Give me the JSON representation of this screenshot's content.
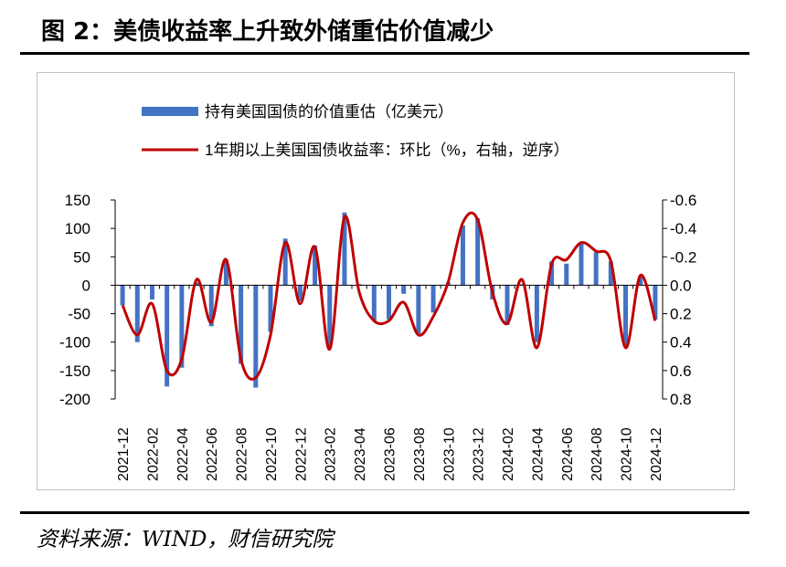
{
  "figure": {
    "title": "图 2：美债收益率上升致外储重估价值减少",
    "source": "资料来源：WIND，财信研究院"
  },
  "colors": {
    "bar": "#4472c4",
    "line": "#c00000",
    "right_axis_text": "#ff0000"
  },
  "chart_data": {
    "type": "bar",
    "legend": [
      {
        "name": "持有美国国债的价值重估（亿美元）",
        "kind": "bar"
      },
      {
        "name": "1年期以上美国国债收益率：环比（%，右轴，逆序）",
        "kind": "line"
      }
    ],
    "legend_position": "top-center",
    "grid": false,
    "x": [
      "2021-12",
      "2022-01",
      "2022-02",
      "2022-03",
      "2022-04",
      "2022-05",
      "2022-06",
      "2022-07",
      "2022-08",
      "2022-09",
      "2022-10",
      "2022-11",
      "2022-12",
      "2023-01",
      "2023-02",
      "2023-03",
      "2023-04",
      "2023-05",
      "2023-06",
      "2023-07",
      "2023-08",
      "2023-09",
      "2023-10",
      "2023-11",
      "2023-12",
      "2024-01",
      "2024-02",
      "2024-03",
      "2024-04",
      "2024-05",
      "2024-06",
      "2024-07",
      "2024-08",
      "2024-09",
      "2024-10",
      "2024-11",
      "2024-12"
    ],
    "x_tick_labels": [
      "2021-12",
      "2022-02",
      "2022-04",
      "2022-06",
      "2022-08",
      "2022-10",
      "2022-12",
      "2023-02",
      "2023-04",
      "2023-06",
      "2023-08",
      "2023-10",
      "2023-12",
      "2024-02",
      "2024-04",
      "2024-06",
      "2024-08",
      "2024-10",
      "2024-12"
    ],
    "series": [
      {
        "name": "持有美国国债的价值重估（亿美元）",
        "axis": "left",
        "values": [
          -35,
          -100,
          -25,
          -178,
          -145,
          5,
          -72,
          45,
          -138,
          -180,
          -82,
          82,
          -28,
          70,
          -110,
          128,
          2,
          -62,
          -60,
          -15,
          -85,
          -48,
          5,
          105,
          118,
          -25,
          -70,
          2,
          -100,
          42,
          38,
          75,
          58,
          42,
          -108,
          15,
          -60
        ]
      },
      {
        "name": "1年期以上美国国债收益率：环比（%，右轴，逆序）",
        "axis": "right",
        "values": [
          0.14,
          0.35,
          0.13,
          0.6,
          0.52,
          -0.04,
          0.26,
          -0.18,
          0.52,
          0.65,
          0.35,
          -0.3,
          0.13,
          -0.27,
          0.45,
          -0.48,
          0.05,
          0.25,
          0.25,
          0.12,
          0.35,
          0.22,
          -0.02,
          -0.44,
          -0.46,
          0.05,
          0.27,
          -0.04,
          0.44,
          -0.15,
          -0.18,
          -0.3,
          -0.24,
          -0.17,
          0.44,
          -0.07,
          0.25
        ]
      }
    ],
    "y_left": {
      "min": -200,
      "max": 150,
      "ticks": [
        150,
        100,
        50,
        0,
        -50,
        -100,
        -150,
        -200
      ]
    },
    "y_right": {
      "min": -0.6,
      "max": 0.8,
      "inverted": true,
      "tick_labels": [
        "-0.6",
        "-0.4",
        "-0.2",
        "0.0",
        "0.2",
        "0.4",
        "0.6",
        "0.8"
      ],
      "tick_values": [
        -0.6,
        -0.4,
        -0.2,
        0.0,
        0.2,
        0.4,
        0.6,
        0.8
      ]
    }
  }
}
